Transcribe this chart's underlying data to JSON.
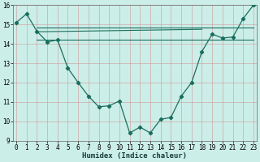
{
  "xlabel": "Humidex (Indice chaleur)",
  "ylabel": "",
  "background_color": "#cceee8",
  "grid_color": "#aaddcc",
  "line_color": "#1a6e5e",
  "x_values": [
    0,
    1,
    2,
    3,
    4,
    5,
    6,
    7,
    8,
    9,
    10,
    11,
    12,
    13,
    14,
    15,
    16,
    17,
    18,
    19,
    20,
    21,
    22,
    23
  ],
  "main_curve": [
    15.1,
    15.55,
    14.65,
    14.1,
    14.2,
    12.75,
    12.0,
    11.3,
    10.75,
    10.8,
    11.05,
    9.4,
    9.7,
    9.4,
    10.1,
    10.2,
    11.3,
    12.0,
    13.6,
    14.5,
    14.3,
    14.35,
    15.3,
    16.0
  ],
  "line1_x": [
    2,
    23
  ],
  "line1_y": [
    14.85,
    14.85
  ],
  "line2_x": [
    2,
    18
  ],
  "line2_y": [
    14.6,
    14.75
  ],
  "line3_x": [
    2,
    23
  ],
  "line3_y": [
    14.2,
    14.2
  ],
  "ylim": [
    9,
    16
  ],
  "xlim": [
    -0.3,
    23.3
  ],
  "yticks": [
    9,
    10,
    11,
    12,
    13,
    14,
    15,
    16
  ],
  "xticks": [
    0,
    1,
    2,
    3,
    4,
    5,
    6,
    7,
    8,
    9,
    10,
    11,
    12,
    13,
    14,
    15,
    16,
    17,
    18,
    19,
    20,
    21,
    22,
    23
  ],
  "tick_fontsize": 5.5,
  "xlabel_fontsize": 6.5
}
